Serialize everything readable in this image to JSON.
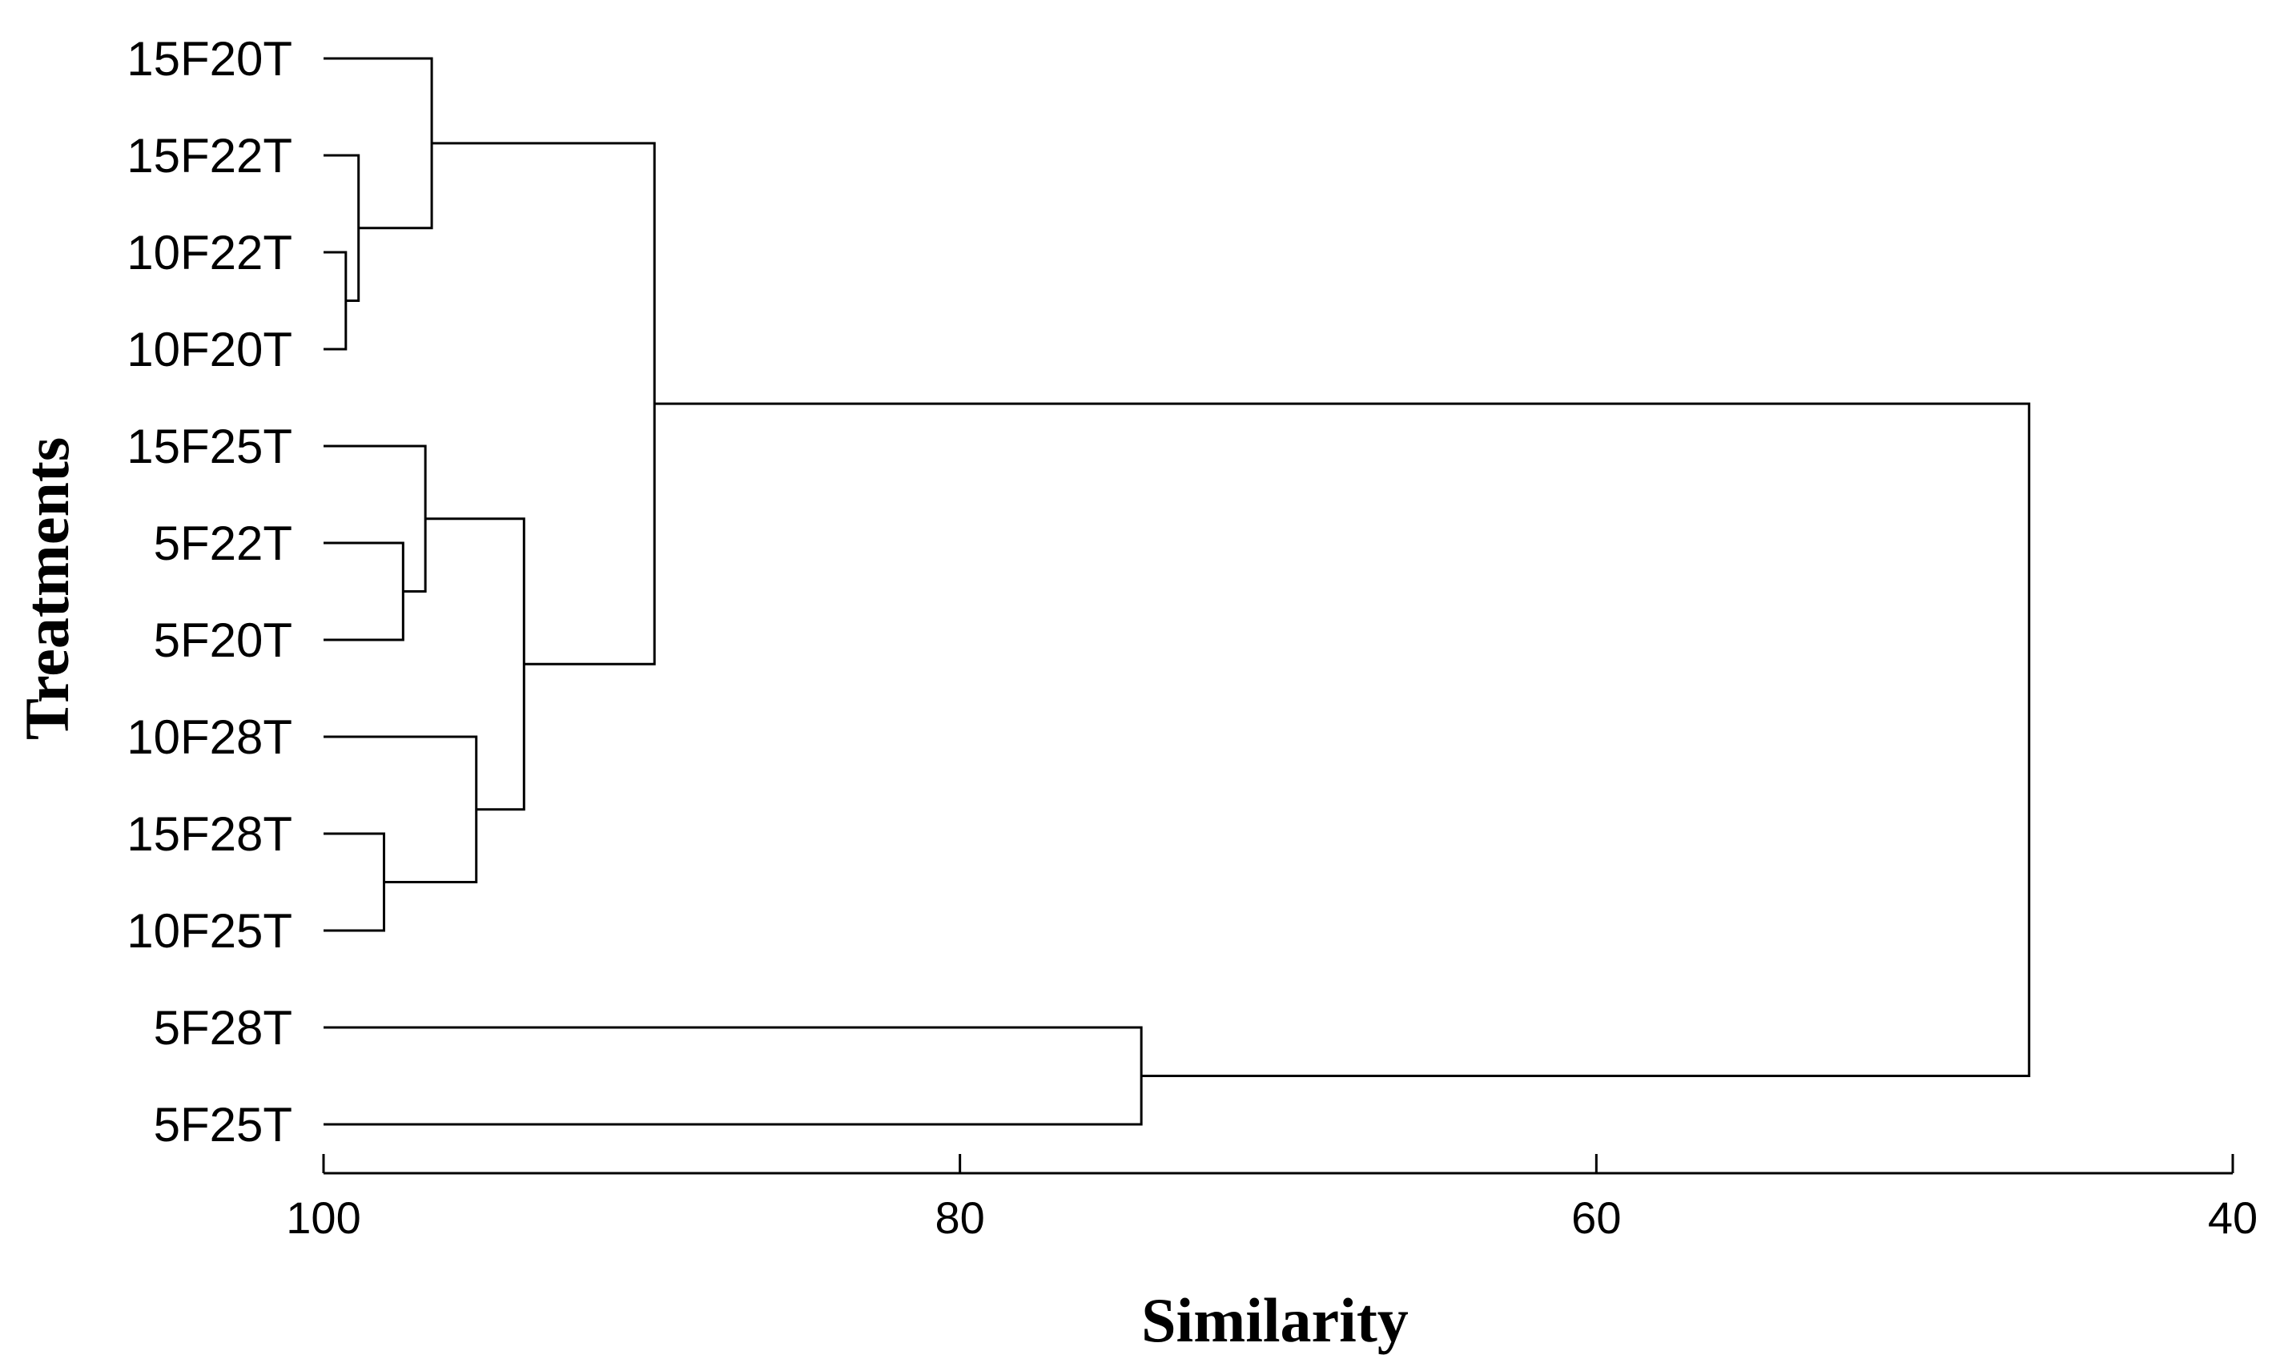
{
  "chart_data": {
    "type": "dendrogram",
    "xlabel": "Similarity",
    "ylabel": "Treatments",
    "xlim": [
      100,
      40
    ],
    "x_ticks": [
      100,
      80,
      60,
      40
    ],
    "leaves": [
      "15F20T",
      "15F22T",
      "10F22T",
      "10F20T",
      "15F25T",
      "5F22T",
      "5F20T",
      "10F28T",
      "15F28T",
      "10F25T",
      "5F28T",
      "5F25T"
    ],
    "merges": [
      {
        "id": "n1",
        "left": "10F22T",
        "right": "10F20T",
        "similarity": 99.3
      },
      {
        "id": "n2",
        "left": "15F22T",
        "right": "n1",
        "similarity": 98.9
      },
      {
        "id": "n3",
        "left": "15F20T",
        "right": "n2",
        "similarity": 96.6
      },
      {
        "id": "n4",
        "left": "5F22T",
        "right": "5F20T",
        "similarity": 97.5
      },
      {
        "id": "n5",
        "left": "15F25T",
        "right": "n4",
        "similarity": 96.8
      },
      {
        "id": "n6",
        "left": "15F28T",
        "right": "10F25T",
        "similarity": 98.1
      },
      {
        "id": "n7",
        "left": "10F28T",
        "right": "n6",
        "similarity": 95.2
      },
      {
        "id": "n8",
        "left": "n5",
        "right": "n7",
        "similarity": 93.7
      },
      {
        "id": "n9",
        "left": "n3",
        "right": "n8",
        "similarity": 89.6
      },
      {
        "id": "n10",
        "left": "5F28T",
        "right": "5F25T",
        "similarity": 74.3
      },
      {
        "id": "n11",
        "left": "n9",
        "right": "n10",
        "similarity": 46.4
      }
    ],
    "grid": false,
    "legend": "none"
  }
}
